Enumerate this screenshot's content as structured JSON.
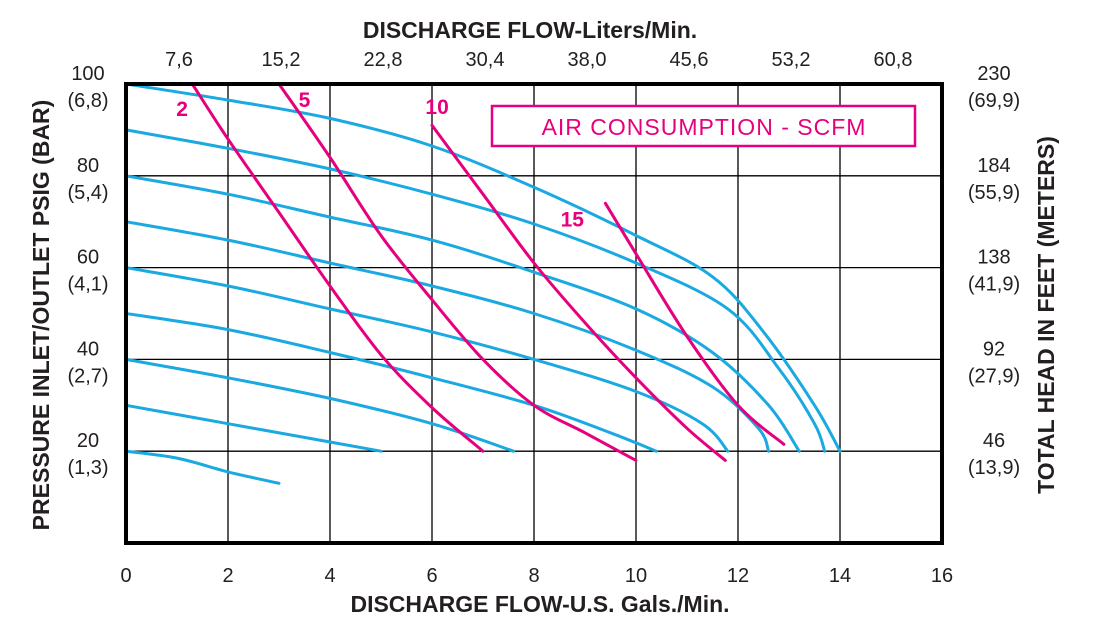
{
  "chart_data": {
    "type": "line",
    "title": "",
    "top_axis_title": "DISCHARGE FLOW-Liters/Min.",
    "bottom_axis_title": "DISCHARGE FLOW-U.S. Gals./Min.",
    "left_axis_title": "PRESSURE INLET/OUTLET PSIG (BAR)",
    "right_axis_title": "TOTAL HEAD IN FEET (METERS)",
    "xlim": [
      0,
      16
    ],
    "ylim": [
      0,
      100
    ],
    "x_ticks": [
      "0",
      "2",
      "4",
      "6",
      "8",
      "10",
      "12",
      "14",
      "16"
    ],
    "top_ticks": [
      "7,6",
      "15,2",
      "22,8",
      "30,4",
      "38,0",
      "45,6",
      "53,2",
      "60,8"
    ],
    "left_ticks": [
      {
        "psig": "100",
        "bar": "(6,8)"
      },
      {
        "psig": "80",
        "bar": "(5,4)"
      },
      {
        "psig": "60",
        "bar": "(4,1)"
      },
      {
        "psig": "40",
        "bar": "(2,7)"
      },
      {
        "psig": "20",
        "bar": "(1,3)"
      }
    ],
    "right_ticks": [
      {
        "feet": "230",
        "meters": "(69,9)"
      },
      {
        "feet": "184",
        "meters": "(55,9)"
      },
      {
        "feet": "138",
        "meters": "(41,9)"
      },
      {
        "feet": "92",
        "meters": "(27,9)"
      },
      {
        "feet": "46",
        "meters": "(13,9)"
      }
    ],
    "grid": true,
    "legend_box": "AIR CONSUMPTION - SCFM",
    "colors": {
      "performance_curves": "#1aa9e0",
      "air_consumption": "#e6007e",
      "frame": "#000000",
      "grid": "#000000",
      "text": "#231f20"
    },
    "performance_curves": [
      {
        "points": [
          [
            0,
            100
          ],
          [
            2,
            96.5
          ],
          [
            4,
            92.5
          ],
          [
            6,
            86.5
          ],
          [
            8,
            77.5
          ],
          [
            10,
            67
          ],
          [
            11.5,
            58
          ],
          [
            12.5,
            46
          ],
          [
            13.5,
            30
          ],
          [
            14,
            20
          ]
        ]
      },
      {
        "points": [
          [
            0,
            90
          ],
          [
            2,
            86
          ],
          [
            4,
            81.5
          ],
          [
            6,
            76
          ],
          [
            8,
            69.5
          ],
          [
            10,
            61
          ],
          [
            11.8,
            51
          ],
          [
            12.8,
            38
          ],
          [
            13.5,
            26
          ],
          [
            13.7,
            20
          ]
        ]
      },
      {
        "points": [
          [
            0,
            80
          ],
          [
            2,
            76
          ],
          [
            4,
            71
          ],
          [
            6,
            66
          ],
          [
            8,
            59
          ],
          [
            10,
            51
          ],
          [
            11.5,
            41.5
          ],
          [
            12.6,
            30
          ],
          [
            13.2,
            20
          ]
        ]
      },
      {
        "points": [
          [
            0,
            70
          ],
          [
            2,
            66
          ],
          [
            4,
            61
          ],
          [
            6,
            56
          ],
          [
            8,
            50
          ],
          [
            10,
            42
          ],
          [
            11.5,
            34
          ],
          [
            12.4,
            25
          ],
          [
            12.6,
            20
          ]
        ]
      },
      {
        "points": [
          [
            0,
            60
          ],
          [
            2,
            56
          ],
          [
            4,
            51
          ],
          [
            6,
            46
          ],
          [
            8,
            40
          ],
          [
            10,
            33
          ],
          [
            11.3,
            26
          ],
          [
            11.8,
            20
          ]
        ]
      },
      {
        "points": [
          [
            0,
            50
          ],
          [
            2,
            46.5
          ],
          [
            4,
            41.5
          ],
          [
            6,
            36
          ],
          [
            8,
            30
          ],
          [
            9.5,
            24
          ],
          [
            10.4,
            20
          ]
        ]
      },
      {
        "points": [
          [
            0,
            40
          ],
          [
            2,
            36
          ],
          [
            4,
            31.5
          ],
          [
            6,
            26
          ],
          [
            7.6,
            20
          ]
        ]
      },
      {
        "points": [
          [
            0,
            30
          ],
          [
            2,
            26
          ],
          [
            4,
            22
          ],
          [
            5,
            20
          ]
        ]
      },
      {
        "points": [
          [
            0,
            20
          ],
          [
            1,
            18.5
          ],
          [
            2,
            15.5
          ],
          [
            3,
            13
          ]
        ]
      }
    ],
    "air_consumption_curves": [
      {
        "label": "2",
        "label_at": [
          1.1,
          93
        ],
        "points": [
          [
            1.3,
            100
          ],
          [
            2,
            88
          ],
          [
            3,
            72
          ],
          [
            4,
            56
          ],
          [
            5,
            41
          ],
          [
            6,
            29.5
          ],
          [
            7,
            20
          ]
        ]
      },
      {
        "label": "5",
        "label_at": [
          3.5,
          95
        ],
        "points": [
          [
            3,
            100
          ],
          [
            4,
            84
          ],
          [
            5,
            67
          ],
          [
            6,
            53
          ],
          [
            7,
            40
          ],
          [
            8,
            30
          ],
          [
            9,
            24
          ],
          [
            10,
            18
          ]
        ]
      },
      {
        "label": "10",
        "label_at": [
          6.1,
          93.5
        ],
        "points": [
          [
            6,
            91
          ],
          [
            7,
            76
          ],
          [
            8,
            61
          ],
          [
            9,
            48
          ],
          [
            10,
            36
          ],
          [
            11,
            25
          ],
          [
            11.75,
            18
          ]
        ]
      },
      {
        "label": "15",
        "label_at": [
          8.75,
          69
        ],
        "points": [
          [
            9.4,
            74
          ],
          [
            10,
            63
          ],
          [
            11,
            45
          ],
          [
            12,
            30
          ],
          [
            12.9,
            21.5
          ]
        ]
      }
    ]
  }
}
